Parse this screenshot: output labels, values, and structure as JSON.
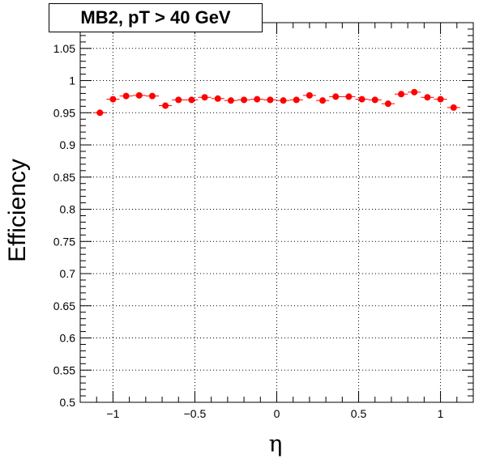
{
  "chart_data": {
    "type": "scatter",
    "title": "MB2, pT > 40 GeV",
    "xlabel": "η",
    "ylabel": "Efficiency",
    "xlim": [
      -1.2,
      1.2
    ],
    "ylim": [
      0.5,
      1.09
    ],
    "grid": true,
    "marker_color": "#ff0000",
    "x_ticks": [
      {
        "value": -1,
        "label": "−1"
      },
      {
        "value": -0.5,
        "label": "−0.5"
      },
      {
        "value": 0,
        "label": "0"
      },
      {
        "value": 0.5,
        "label": "0.5"
      },
      {
        "value": 1,
        "label": "1"
      }
    ],
    "y_ticks": [
      {
        "value": 0.5,
        "label": "0.5"
      },
      {
        "value": 0.55,
        "label": "0.55"
      },
      {
        "value": 0.6,
        "label": "0.6"
      },
      {
        "value": 0.65,
        "label": "0.65"
      },
      {
        "value": 0.7,
        "label": "0.7"
      },
      {
        "value": 0.75,
        "label": "0.75"
      },
      {
        "value": 0.8,
        "label": "0.8"
      },
      {
        "value": 0.85,
        "label": "0.85"
      },
      {
        "value": 0.9,
        "label": "0.9"
      },
      {
        "value": 0.95,
        "label": "0.95"
      },
      {
        "value": 1,
        "label": "1"
      },
      {
        "value": 1.05,
        "label": "1.05"
      }
    ],
    "x_bin_half_width": 0.04,
    "series": [
      {
        "x": [
          -1.08,
          -1.0,
          -0.92,
          -0.84,
          -0.76,
          -0.68,
          -0.6,
          -0.52,
          -0.44,
          -0.36,
          -0.28,
          -0.2,
          -0.12,
          -0.04,
          0.04,
          0.12,
          0.2,
          0.28,
          0.36,
          0.44,
          0.52,
          0.6,
          0.68,
          0.76,
          0.84,
          0.92,
          1.0,
          1.08
        ],
        "y": [
          0.95,
          0.971,
          0.976,
          0.977,
          0.976,
          0.961,
          0.97,
          0.97,
          0.974,
          0.972,
          0.969,
          0.97,
          0.971,
          0.97,
          0.969,
          0.97,
          0.977,
          0.969,
          0.975,
          0.975,
          0.971,
          0.97,
          0.964,
          0.979,
          0.982,
          0.974,
          0.971,
          0.958
        ],
        "y_err": [
          0.003,
          0.003,
          0.002,
          0.002,
          0.002,
          0.003,
          0.002,
          0.002,
          0.002,
          0.002,
          0.002,
          0.002,
          0.002,
          0.002,
          0.002,
          0.002,
          0.002,
          0.002,
          0.002,
          0.002,
          0.002,
          0.002,
          0.003,
          0.002,
          0.002,
          0.002,
          0.003,
          0.003
        ]
      }
    ]
  }
}
